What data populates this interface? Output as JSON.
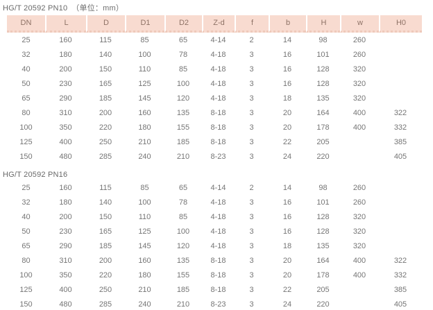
{
  "page": {
    "unit_note": "（单位：mm）"
  },
  "columns": [
    "DN",
    "L",
    "D",
    "D1",
    "D2",
    "Z-d",
    "f",
    "b",
    "H",
    "w",
    "H0"
  ],
  "tables": [
    {
      "title": "HG/T 20592 PN10",
      "show_header": true,
      "rows": [
        [
          "25",
          "160",
          "115",
          "85",
          "65",
          "4-14",
          "2",
          "14",
          "98",
          "260",
          ""
        ],
        [
          "32",
          "180",
          "140",
          "100",
          "78",
          "4-18",
          "3",
          "16",
          "101",
          "260",
          ""
        ],
        [
          "40",
          "200",
          "150",
          "110",
          "85",
          "4-18",
          "3",
          "16",
          "128",
          "320",
          ""
        ],
        [
          "50",
          "230",
          "165",
          "125",
          "100",
          "4-18",
          "3",
          "16",
          "128",
          "320",
          ""
        ],
        [
          "65",
          "290",
          "185",
          "145",
          "120",
          "4-18",
          "3",
          "18",
          "135",
          "320",
          ""
        ],
        [
          "80",
          "310",
          "200",
          "160",
          "135",
          "8-18",
          "3",
          "20",
          "164",
          "400",
          "322"
        ],
        [
          "100",
          "350",
          "220",
          "180",
          "155",
          "8-18",
          "3",
          "20",
          "178",
          "400",
          "332"
        ],
        [
          "125",
          "400",
          "250",
          "210",
          "185",
          "8-18",
          "3",
          "22",
          "205",
          "",
          "385"
        ],
        [
          "150",
          "480",
          "285",
          "240",
          "210",
          "8-23",
          "3",
          "24",
          "220",
          "",
          "405"
        ]
      ]
    },
    {
      "title": "HG/T 20592 PN16",
      "show_header": false,
      "rows": [
        [
          "25",
          "160",
          "115",
          "85",
          "65",
          "4-14",
          "2",
          "14",
          "98",
          "260",
          ""
        ],
        [
          "32",
          "180",
          "140",
          "100",
          "78",
          "4-18",
          "3",
          "16",
          "101",
          "260",
          ""
        ],
        [
          "40",
          "200",
          "150",
          "110",
          "85",
          "4-18",
          "3",
          "16",
          "128",
          "320",
          ""
        ],
        [
          "50",
          "230",
          "165",
          "125",
          "100",
          "4-18",
          "3",
          "16",
          "128",
          "320",
          ""
        ],
        [
          "65",
          "290",
          "185",
          "145",
          "120",
          "4-18",
          "3",
          "18",
          "135",
          "320",
          ""
        ],
        [
          "80",
          "310",
          "200",
          "160",
          "135",
          "8-18",
          "3",
          "20",
          "164",
          "400",
          "322"
        ],
        [
          "100",
          "350",
          "220",
          "180",
          "155",
          "8-18",
          "3",
          "20",
          "178",
          "400",
          "332"
        ],
        [
          "125",
          "400",
          "250",
          "210",
          "185",
          "8-18",
          "3",
          "22",
          "205",
          "",
          "385"
        ],
        [
          "150",
          "480",
          "285",
          "240",
          "210",
          "8-23",
          "3",
          "24",
          "220",
          "",
          "405"
        ]
      ]
    }
  ]
}
